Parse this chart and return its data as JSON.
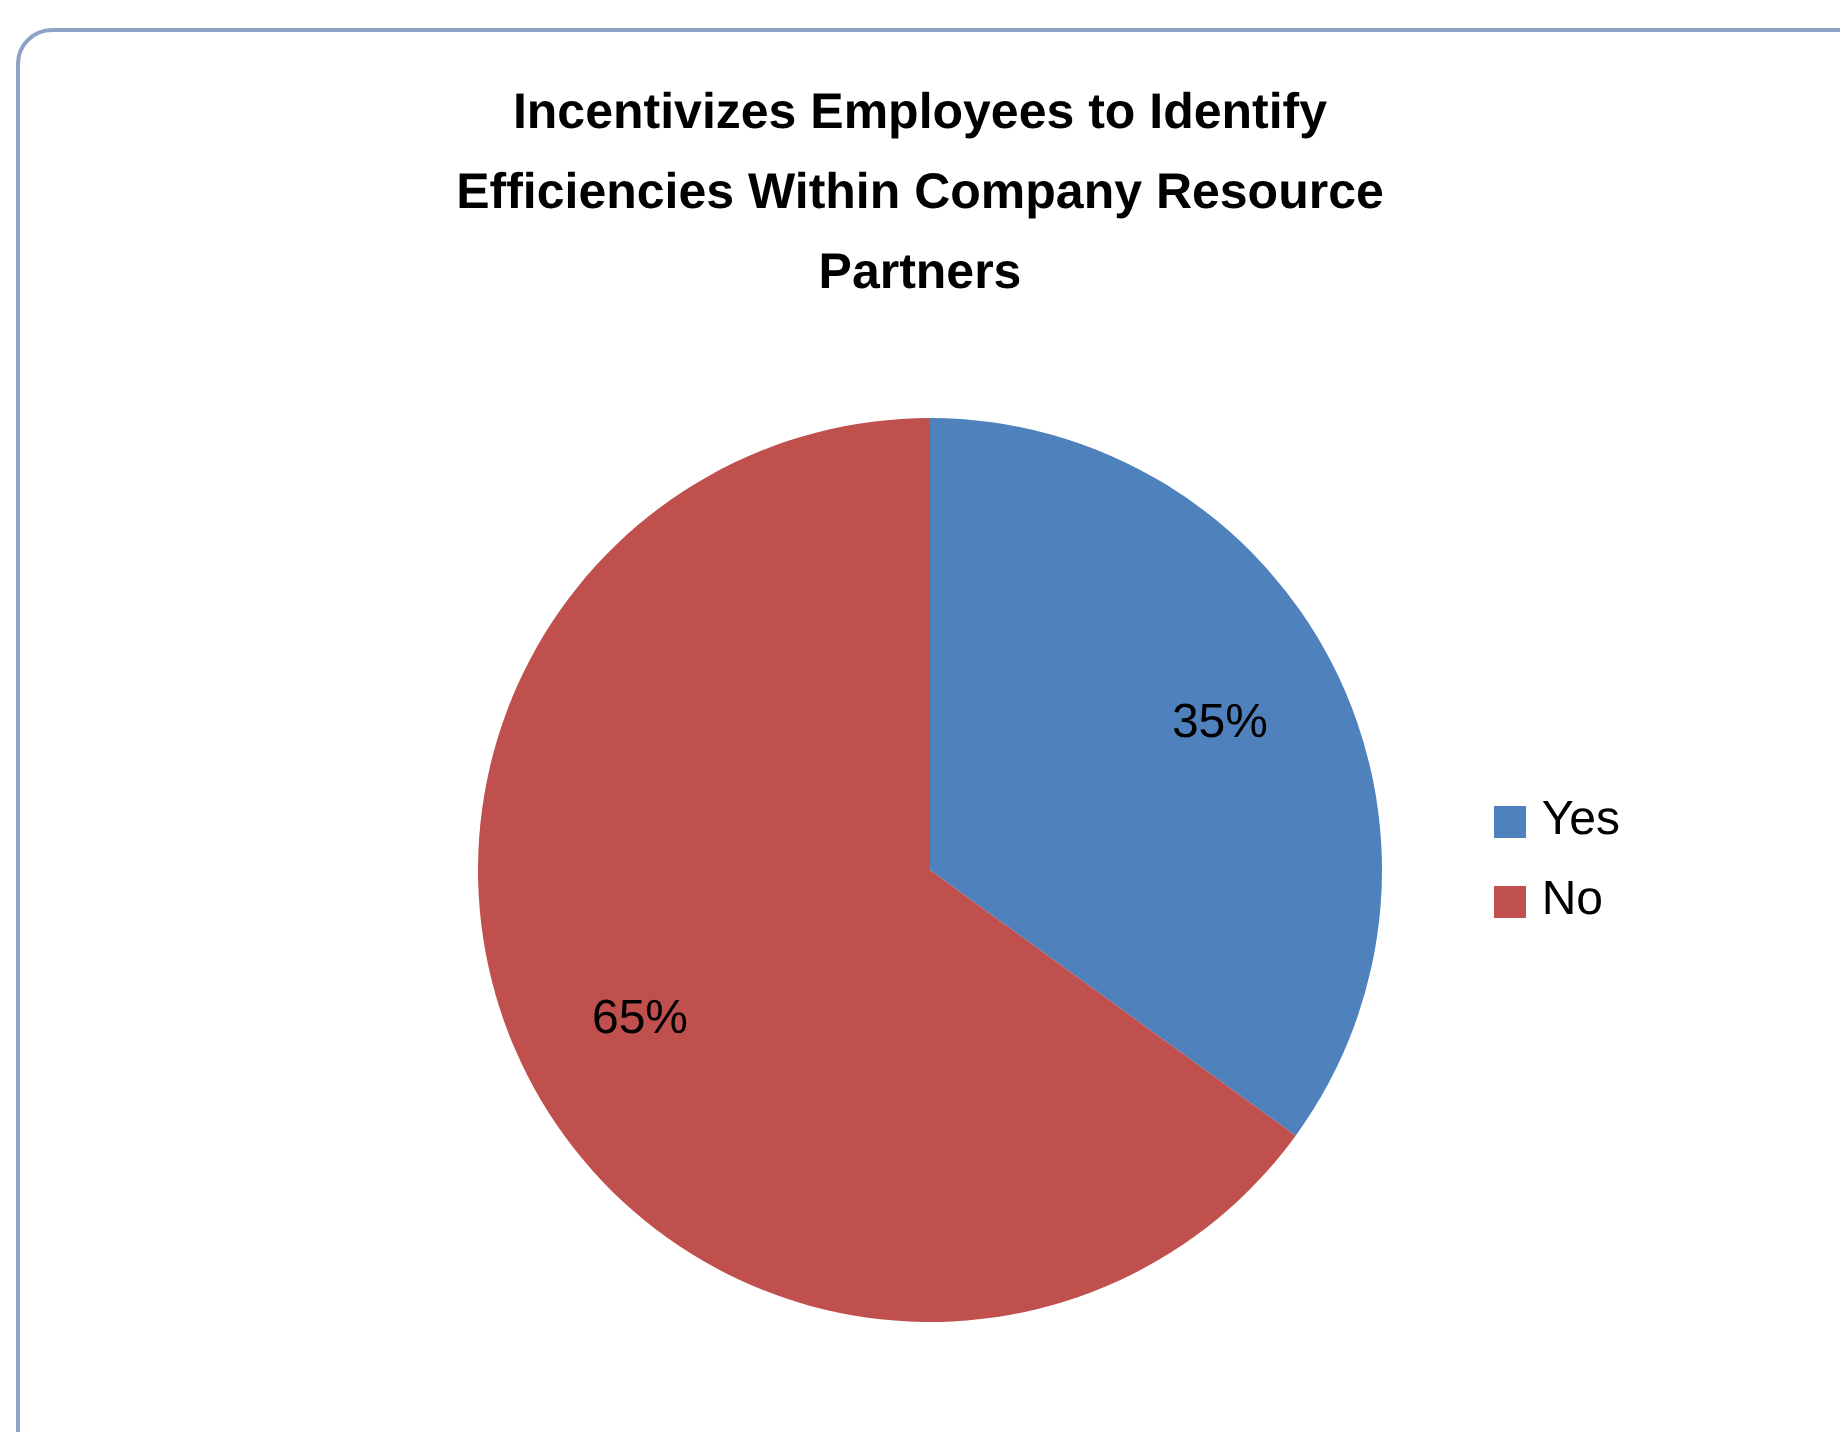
{
  "chart_data": {
    "type": "pie",
    "title": "Incentivizes Employees to Identify Efficiencies Within Company Resource Partners",
    "categories": [
      "Yes",
      "No"
    ],
    "values": [
      35,
      65
    ],
    "colors": [
      "#4f81bd",
      "#c0504d"
    ],
    "value_labels": [
      "35%",
      "65%"
    ],
    "legend": "right"
  }
}
